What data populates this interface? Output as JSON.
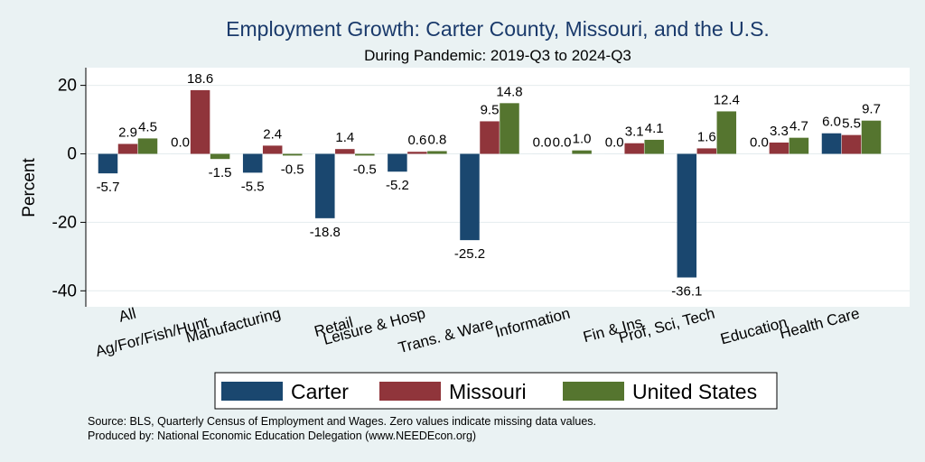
{
  "chart_data": {
    "type": "bar",
    "title": "Employment Growth: Carter County, Missouri, and the U.S.",
    "subtitle": "During Pandemic: 2019-Q3 to 2024-Q3",
    "ylabel": "Percent",
    "xlabel": "",
    "ylim": [
      -45,
      25
    ],
    "yticks": [
      20,
      0,
      -20,
      -40
    ],
    "grid": true,
    "legend_position": "bottom",
    "categories": [
      "All",
      "Ag/For/Fish/Hunt",
      "Manufacturing",
      "Retail",
      "Leisure & Hosp",
      "Trans. & Ware.",
      "Information",
      "Fin & Ins",
      "Prof, Sci, Tech",
      "Education",
      "Health Care"
    ],
    "series": [
      {
        "name": "Carter",
        "color": "#1a476f",
        "values": [
          -5.7,
          0.0,
          -5.5,
          -18.8,
          -5.2,
          -25.2,
          0.0,
          0.0,
          -36.1,
          0.0,
          6.0
        ],
        "labels": [
          "-5.7",
          "0.0",
          "-5.5",
          "-18.8",
          "-5.2",
          "-25.2",
          "0.0",
          "0.0",
          "-36.1",
          "0.0",
          "6.0"
        ]
      },
      {
        "name": "Missouri",
        "color": "#90353b",
        "values": [
          2.9,
          18.6,
          2.4,
          1.4,
          0.6,
          9.5,
          0.0,
          3.1,
          1.6,
          3.3,
          5.5
        ],
        "labels": [
          "2.9",
          "18.6",
          "2.4",
          "1.4",
          "0.6",
          "9.5",
          "0.0",
          "3.1",
          "1.6",
          "3.3",
          "5.5"
        ]
      },
      {
        "name": "United States",
        "color": "#55752f",
        "values": [
          4.5,
          -1.5,
          -0.5,
          -0.5,
          0.8,
          14.8,
          1.0,
          4.1,
          12.4,
          4.7,
          9.7
        ],
        "labels": [
          "4.5",
          "-1.5",
          "-0.5",
          "-0.5",
          "0.8",
          "14.8",
          "1.0",
          "4.1",
          "12.4",
          "4.7",
          "9.7"
        ]
      }
    ],
    "source_lines": [
      "Source: BLS, Quarterly Census of Employment and Wages. Zero values indicate missing data values.",
      "Produced by: National Economic Education Delegation (www.NEEDEcon.org)"
    ]
  }
}
